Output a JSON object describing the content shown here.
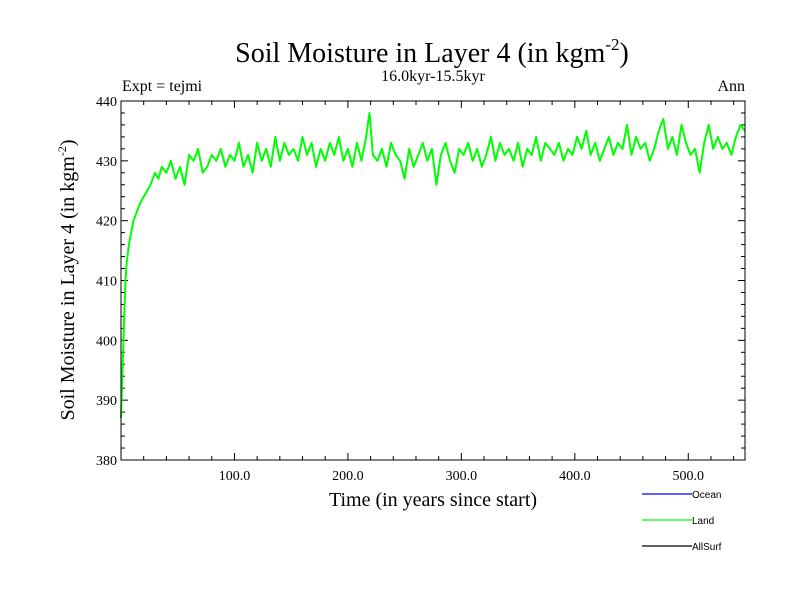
{
  "chart_data": {
    "type": "line",
    "title": "Soil Moisture in Layer 4 (in kgm",
    "title_sup": "-2",
    "title_close": ")",
    "subtitle": "16.0kyr-15.5kyr",
    "expt_label": "Expt = tejmi",
    "period_label": "Ann",
    "xlabel": "Time (in years since start)",
    "ylabel": "Soil Moisture in Layer 4 (in kgm",
    "ylabel_sup": "-2",
    "ylabel_close": ")",
    "xlim": [
      0,
      550
    ],
    "ylim": [
      380,
      440
    ],
    "xticks": [
      100,
      200,
      300,
      400,
      500
    ],
    "xtick_labels": [
      "100.0",
      "200.0",
      "300.0",
      "400.0",
      "500.0"
    ],
    "yticks": [
      380,
      390,
      400,
      410,
      420,
      430,
      440
    ],
    "ytick_labels": [
      "380",
      "390",
      "400",
      "410",
      "420",
      "430",
      "440"
    ],
    "legend_position": "bottom-right",
    "series": [
      {
        "name": "Ocean",
        "color": "#0000ff",
        "values": []
      },
      {
        "name": "Land",
        "color": "#00ff00",
        "x": [
          0,
          1,
          2,
          3,
          4,
          5,
          7,
          9,
          11,
          13,
          15,
          17,
          20,
          23,
          26,
          30,
          33,
          36,
          40,
          44,
          48,
          52,
          56,
          60,
          64,
          68,
          72,
          76,
          80,
          84,
          88,
          92,
          96,
          100,
          104,
          108,
          112,
          116,
          120,
          124,
          128,
          132,
          136,
          140,
          144,
          148,
          152,
          156,
          160,
          164,
          168,
          172,
          176,
          180,
          184,
          188,
          192,
          196,
          200,
          204,
          208,
          212,
          216,
          219,
          222,
          226,
          230,
          234,
          238,
          242,
          246,
          250,
          254,
          258,
          262,
          266,
          270,
          274,
          278,
          282,
          286,
          290,
          294,
          298,
          302,
          306,
          310,
          314,
          318,
          322,
          326,
          330,
          334,
          338,
          342,
          346,
          350,
          354,
          358,
          362,
          366,
          370,
          374,
          378,
          382,
          386,
          390,
          394,
          398,
          402,
          406,
          410,
          414,
          418,
          422,
          426,
          430,
          434,
          438,
          442,
          446,
          450,
          454,
          458,
          462,
          466,
          470,
          474,
          478,
          482,
          486,
          490,
          494,
          498,
          502,
          506,
          510,
          514,
          518,
          522,
          526,
          530,
          534,
          538,
          542,
          546,
          550
        ],
        "values": [
          387,
          393,
          399,
          405,
          410,
          413,
          416,
          418,
          420,
          421,
          422,
          423,
          424,
          425,
          426,
          428,
          427,
          429,
          428,
          430,
          427,
          429,
          426,
          431,
          430,
          432,
          428,
          429,
          431,
          430,
          432,
          429,
          431,
          430,
          433,
          429,
          431,
          428,
          433,
          430,
          432,
          429,
          434,
          430,
          433,
          431,
          432,
          430,
          434,
          431,
          433,
          429,
          432,
          430,
          433,
          431,
          434,
          430,
          432,
          429,
          433,
          430,
          434,
          438,
          431,
          430,
          432,
          429,
          433,
          431,
          430,
          427,
          432,
          429,
          431,
          433,
          430,
          432,
          426,
          431,
          433,
          430,
          428,
          432,
          431,
          433,
          430,
          432,
          429,
          431,
          434,
          430,
          433,
          431,
          432,
          430,
          433,
          429,
          432,
          431,
          434,
          430,
          433,
          432,
          431,
          433,
          430,
          432,
          431,
          434,
          432,
          435,
          431,
          433,
          430,
          432,
          434,
          431,
          433,
          432,
          436,
          431,
          434,
          432,
          433,
          430,
          432,
          435,
          437,
          432,
          434,
          431,
          436,
          433,
          431,
          432,
          428,
          433,
          436,
          432,
          434,
          432,
          433,
          431,
          434,
          436,
          435
        ]
      },
      {
        "name": "AllSurf",
        "color": "#000000",
        "values": []
      }
    ]
  }
}
